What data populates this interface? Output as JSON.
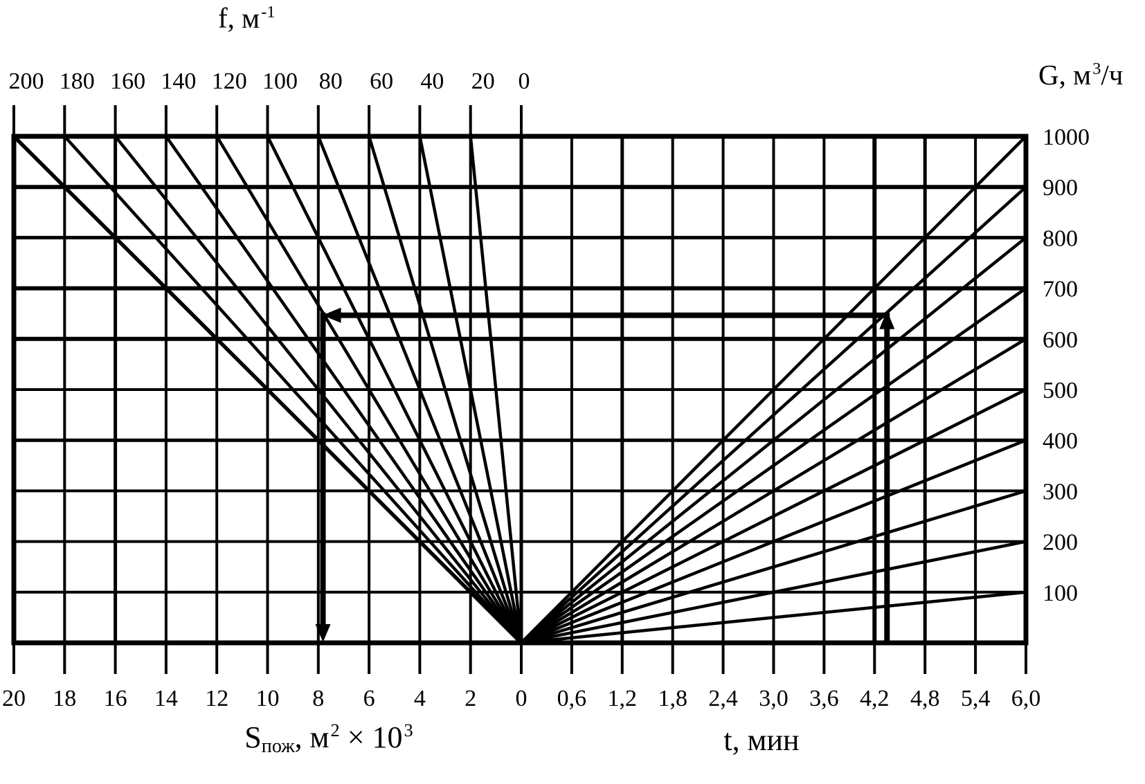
{
  "page": {
    "background": "#ffffff",
    "ink": "#000000"
  },
  "axes": {
    "top": {
      "title_base": "f, м",
      "title_sup": "-1",
      "tick_labels": [
        "200",
        "180",
        "160",
        "140",
        "120",
        "100",
        "80",
        "60",
        "40",
        "20",
        "0"
      ]
    },
    "right": {
      "title_base": "G, м",
      "title_sup": "3",
      "title_after": "/ч",
      "tick_labels": [
        "1000",
        "900",
        "800",
        "700",
        "600",
        "500",
        "400",
        "300",
        "200",
        "100"
      ]
    },
    "bottom_left": {
      "title_main": "S",
      "title_sub": "пож",
      "title_mid": ", м",
      "title_sup1": "2",
      "title_mid2": " × 10",
      "title_sup2": "3",
      "tick_labels": [
        "20",
        "18",
        "16",
        "14",
        "12",
        "10",
        "8",
        "6",
        "4",
        "2",
        "0"
      ]
    },
    "bottom_right": {
      "title": "t, мин",
      "tick_labels": [
        "0,6",
        "1,2",
        "1,8",
        "2,4",
        "3,0",
        "3,6",
        "4,2",
        "4,8",
        "5,4",
        "6,0"
      ]
    }
  },
  "chart_data": {
    "type": "line",
    "subtype": "nomogram",
    "grid": "on",
    "quadrants": {
      "left": {
        "bottom_axis": "Sпож, м² × 10³",
        "bottom_range_left_to_right": [
          20,
          0
        ],
        "fan_axis": "f, м⁻¹",
        "fan_range": [
          200,
          20
        ]
      },
      "right": {
        "bottom_axis": "t, мин",
        "bottom_range_left_to_right": [
          0,
          6
        ],
        "fan_axis": "G, м³/ч",
        "fan_range": [
          1000,
          100
        ]
      }
    },
    "g_levels": [
      1000,
      900,
      800,
      700,
      600,
      500,
      400,
      300,
      200,
      100,
      0
    ],
    "f_fan_lines": {
      "units": "м⁻¹",
      "origin": "S=0, bottom",
      "values": [
        200,
        180,
        160,
        140,
        120,
        100,
        80,
        60,
        40,
        20
      ]
    },
    "g_fan_lines": {
      "units": "м³/ч",
      "origin": "t=0, bottom",
      "values": [
        1000,
        900,
        800,
        700,
        600,
        500,
        400,
        300,
        200,
        100
      ]
    },
    "example_path": {
      "t_min": 4.2,
      "G_m3_per_h": 900,
      "f_m_1": 120,
      "S_m2_x1000": 7.9
    }
  }
}
